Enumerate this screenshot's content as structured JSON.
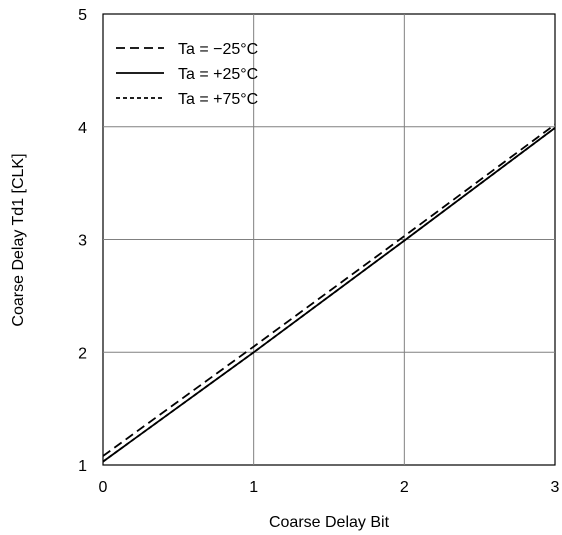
{
  "chart_data": {
    "type": "line",
    "title": "",
    "xlabel": "Coarse Delay Bit",
    "ylabel": "Coarse Delay Td1 [CLK]",
    "xlim": [
      0,
      3
    ],
    "ylim": [
      1,
      5
    ],
    "xticks": [
      0,
      1,
      2,
      3
    ],
    "yticks": [
      1,
      2,
      3,
      4,
      5
    ],
    "x_tick_labels": [
      "0",
      "1",
      "2",
      "3"
    ],
    "y_tick_labels": [
      "1",
      "2",
      "3",
      "4",
      "5"
    ],
    "grid": true,
    "legend_position": "top-left",
    "series": [
      {
        "name": "Ta = −25°C",
        "style": "long-dash",
        "color": "#000000",
        "x": [
          0,
          1,
          2,
          3
        ],
        "y": [
          1.08,
          2.05,
          3.03,
          4.02
        ]
      },
      {
        "name": "Ta = +25°C",
        "style": "solid",
        "color": "#000000",
        "x": [
          0,
          1,
          2,
          3
        ],
        "y": [
          1.03,
          2.0,
          2.99,
          3.99
        ]
      },
      {
        "name": "Ta = +75°C",
        "style": "short-dash",
        "color": "#000000",
        "x": [
          0,
          1,
          2,
          3
        ],
        "y": [
          1.03,
          2.0,
          2.99,
          3.99
        ]
      }
    ]
  }
}
